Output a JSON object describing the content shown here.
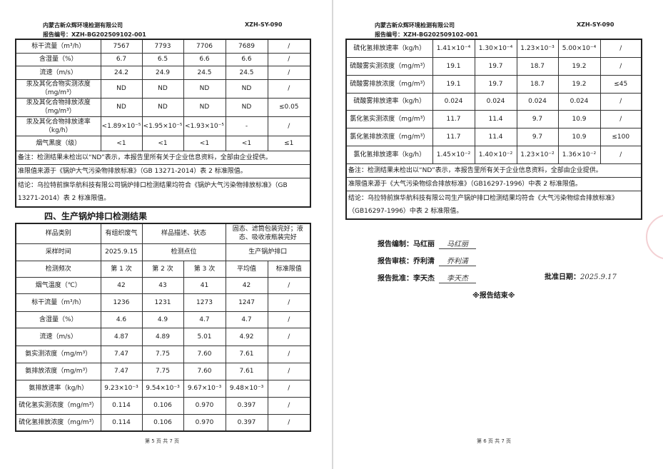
{
  "page5": {
    "company": "内蒙古新众辉环境检测有限公司",
    "doc_code": "XZH-SY-090",
    "report_no": "报告编号：XZH-BG202509102-001",
    "table1_rows": [
      [
        "标干流量（m³/h）",
        "7567",
        "7793",
        "7706",
        "7689",
        "/"
      ],
      [
        "含湿量（%）",
        "6.7",
        "6.5",
        "6.6",
        "6.6",
        "/"
      ],
      [
        "流速（m/s）",
        "24.2",
        "24.9",
        "24.5",
        "24.5",
        "/"
      ],
      [
        "汞及其化合物实测浓度（mg/m³）",
        "ND",
        "ND",
        "ND",
        "ND",
        "/"
      ],
      [
        "汞及其化合物排放浓度（mg/m³）",
        "ND",
        "ND",
        "ND",
        "ND",
        "≤0.05"
      ],
      [
        "汞及其化合物排放速率（kg/h）",
        "<1.89×10⁻⁵",
        "<1.95×10⁻⁵",
        "<1.93×10⁻⁵",
        "-",
        "/"
      ],
      [
        "烟气黑度（级）",
        "<1",
        "<1",
        "<1",
        "<1",
        "≤1"
      ]
    ],
    "table1_notes": [
      "备注：检测结果未检出以“ND”表示，本报告里所有关于企业信息资料，全部由企业提供。",
      "准限值来源于《锅炉大气污染物排放标准》（GB 13271-2014）表 2 标准限值。",
      "结论：乌拉特前旗华航科技有限公司锅炉排口检测结果均符合《锅炉大气污染物排放标准》（GB 13271-2014）表 2 标准限值。"
    ],
    "section_title": "四、生产锅炉排口检测结果",
    "table2_header": {
      "sample_type_label": "样品类别",
      "sample_type": "有组织废气",
      "sample_desc_label": "样品描述、状态",
      "sample_desc": "固态、滤筒包装完好；液态、吸收液瓶装完好",
      "sampling_time_label": "采样时间",
      "sampling_time": "2025.9.15",
      "point_label": "检测点位",
      "point": "生产锅炉排口",
      "cols": [
        "检测频次",
        "第 1 次",
        "第 2 次",
        "第 3 次",
        "平均值",
        "标准限值"
      ]
    },
    "table2_rows": [
      [
        "烟气温度（℃）",
        "42",
        "43",
        "41",
        "42",
        "/"
      ],
      [
        "标干流量（m³/h）",
        "1236",
        "1231",
        "1273",
        "1247",
        "/"
      ],
      [
        "含湿量（%）",
        "4.6",
        "4.9",
        "4.7",
        "4.7",
        "/"
      ],
      [
        "流速（m/s）",
        "4.87",
        "4.89",
        "5.01",
        "4.92",
        "/"
      ],
      [
        "氨实测浓度（mg/m³）",
        "7.47",
        "7.75",
        "7.60",
        "7.61",
        "/"
      ],
      [
        "氨排放浓度（mg/m³）",
        "7.47",
        "7.75",
        "7.60",
        "7.61",
        "/"
      ],
      [
        "氨排放速率（kg/h）",
        "9.23×10⁻³",
        "9.54×10⁻³",
        "9.67×10⁻³",
        "9.48×10⁻³",
        "/"
      ],
      [
        "硫化氢实测浓度（mg/m³）",
        "0.114",
        "0.106",
        "0.970",
        "0.397",
        "/"
      ],
      [
        "硫化氢排放浓度（mg/m³）",
        "0.114",
        "0.106",
        "0.970",
        "0.397",
        "/"
      ]
    ],
    "footer": "第 5 页 共 7 页"
  },
  "page6": {
    "company": "内蒙古新众辉环境检测有限公司",
    "doc_code": "XZH-SY-090",
    "report_no": "报告编号：XZH-BG202509102-001",
    "table_rows": [
      [
        "硫化氢排放速率（kg/h）",
        "1.41×10⁻⁴",
        "1.30×10⁻⁴",
        "1.23×10⁻³",
        "5.00×10⁻⁴",
        "/"
      ],
      [
        "硫酸雾实测浓度（mg/m³）",
        "19.1",
        "19.7",
        "18.7",
        "19.2",
        "/"
      ],
      [
        "硫酸雾排放浓度（mg/m³）",
        "19.1",
        "19.7",
        "18.7",
        "19.2",
        "≤45"
      ],
      [
        "硫酸雾排放速率（kg/h）",
        "0.024",
        "0.024",
        "0.024",
        "0.024",
        "/"
      ],
      [
        "氯化氢实测浓度（mg/m³）",
        "11.7",
        "11.4",
        "9.7",
        "10.9",
        "/"
      ],
      [
        "氯化氢排放浓度（mg/m³）",
        "11.7",
        "11.4",
        "9.7",
        "10.9",
        "≤100"
      ],
      [
        "氯化氢排放速率（kg/h）",
        "1.45×10⁻²",
        "1.40×10⁻²",
        "1.23×10⁻²",
        "1.36×10⁻²",
        "/"
      ]
    ],
    "notes": [
      "备注：检测结果未检出以“ND”表示，本报告里所有关于企业信息资料，全部由企业提供。",
      "准限值来源于《大气污染物综合排放标准》（GB16297-1996）中表 2 标准限值。",
      "结论：乌拉特前旗华航科技有限公司生产锅炉排口检测结果均符合《大气污染物综合排放标准》（GB16297-1996）中表 2 标准限值。"
    ],
    "signatures": {
      "compiled_label": "报告编制：马红丽",
      "compiled_sign": "马红丽",
      "reviewed_label": "报告审核：乔利清",
      "reviewed_sign": "乔利清",
      "approved_label": "报告批准：李天杰",
      "approved_sign": "李天杰",
      "date_label": "批准日期：",
      "date_value": "2025.9.17"
    },
    "end_mark": "※报告结束※",
    "footer": "第 6 页 共 7 页"
  }
}
